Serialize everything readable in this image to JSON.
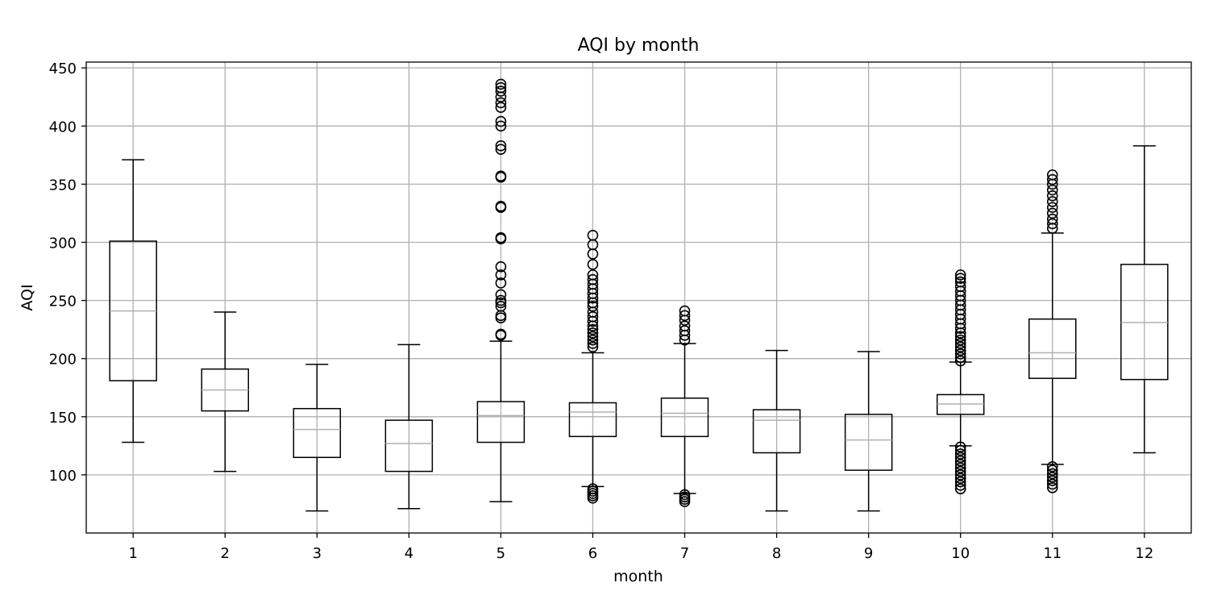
{
  "chart_data": {
    "type": "box",
    "title": "AQI by month",
    "xlabel": "month",
    "ylabel": "AQI",
    "ylim": [
      50,
      455
    ],
    "yticks": [
      100,
      150,
      200,
      250,
      300,
      350,
      400,
      450
    ],
    "grid": true,
    "categories": [
      "1",
      "2",
      "3",
      "4",
      "5",
      "6",
      "7",
      "8",
      "9",
      "10",
      "11",
      "12"
    ],
    "boxes": [
      {
        "month": "1",
        "whisker_low": 128,
        "q1": 181,
        "median": 241,
        "q3": 301,
        "whisker_high": 371,
        "outliers": []
      },
      {
        "month": "2",
        "whisker_low": 103,
        "q1": 155,
        "median": 173,
        "q3": 191,
        "whisker_high": 240,
        "outliers": []
      },
      {
        "month": "3",
        "whisker_low": 69,
        "q1": 115,
        "median": 139,
        "q3": 157,
        "whisker_high": 195,
        "outliers": []
      },
      {
        "month": "4",
        "whisker_low": 71,
        "q1": 103,
        "median": 127,
        "q3": 147,
        "whisker_high": 212,
        "outliers": []
      },
      {
        "month": "5",
        "whisker_low": 77,
        "q1": 128,
        "median": 151,
        "q3": 163,
        "whisker_high": 215,
        "outliers": [
          220,
          221,
          235,
          237,
          245,
          248,
          250,
          255,
          265,
          272,
          279,
          303,
          304,
          330,
          331,
          356,
          357,
          380,
          383,
          400,
          404,
          416,
          420,
          425,
          430,
          433,
          436
        ]
      },
      {
        "month": "6",
        "whisker_low": 90,
        "q1": 133,
        "median": 154,
        "q3": 162,
        "whisker_high": 205,
        "outliers": [
          80,
          82,
          84,
          86,
          88,
          210,
          213,
          216,
          219,
          222,
          225,
          228,
          232,
          236,
          240,
          245,
          248,
          252,
          256,
          260,
          264,
          268,
          272,
          281,
          290,
          298,
          306
        ]
      },
      {
        "month": "7",
        "whisker_low": 84,
        "q1": 133,
        "median": 153,
        "q3": 166,
        "whisker_high": 213,
        "outliers": [
          77,
          79,
          81,
          83,
          216,
          220,
          224,
          228,
          233,
          237,
          241
        ]
      },
      {
        "month": "8",
        "whisker_low": 69,
        "q1": 119,
        "median": 147,
        "q3": 156,
        "whisker_high": 207,
        "outliers": []
      },
      {
        "month": "9",
        "whisker_low": 69,
        "q1": 104,
        "median": 130,
        "q3": 152,
        "whisker_high": 206,
        "outliers": []
      },
      {
        "month": "10",
        "whisker_low": 125,
        "q1": 152,
        "median": 161,
        "q3": 169,
        "whisker_high": 197,
        "outliers": [
          88,
          91,
          94,
          97,
          100,
          103,
          106,
          109,
          112,
          115,
          118,
          121,
          124,
          198,
          201,
          204,
          207,
          210,
          213,
          216,
          219,
          222,
          226,
          230,
          234,
          238,
          242,
          246,
          250,
          254,
          258,
          262,
          266,
          269,
          272
        ]
      },
      {
        "month": "11",
        "whisker_low": 109,
        "q1": 183,
        "median": 205,
        "q3": 234,
        "whisker_high": 308,
        "outliers": [
          89,
          92,
          95,
          98,
          101,
          104,
          107,
          312,
          316,
          320,
          325,
          330,
          335,
          340,
          345,
          350,
          354,
          358
        ]
      },
      {
        "month": "12",
        "whisker_low": 119,
        "q1": 182,
        "median": 231,
        "q3": 281,
        "whisker_high": 383,
        "outliers": []
      }
    ]
  }
}
